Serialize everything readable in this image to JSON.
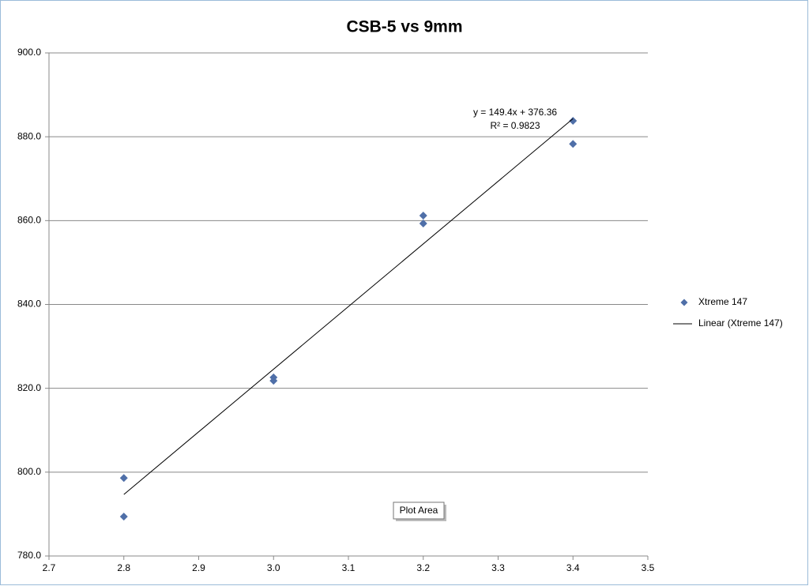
{
  "chart_data": {
    "type": "scatter",
    "title": "CSB-5 vs 9mm",
    "series": [
      {
        "name": "Xtreme 147",
        "color": "#4f6fa8",
        "x": [
          2.8,
          2.8,
          3.0,
          3.0,
          3.2,
          3.2,
          3.4,
          3.4
        ],
        "values": [
          789.4,
          798.6,
          822.6,
          821.8,
          861.2,
          859.3,
          883.8,
          878.3
        ]
      }
    ],
    "trendline": {
      "name": "Linear (Xtreme 147)",
      "color": "#000000",
      "slope": 149.4,
      "intercept": 376.36,
      "equation": "y = 149.4x + 376.36",
      "r2_label": "R² = 0.9823"
    },
    "xlim": [
      2.7,
      3.5
    ],
    "xticks": [
      2.7,
      2.8,
      2.9,
      {
        "value": 3.0,
        "label": "3.0"
      },
      3.1,
      3.2,
      3.3,
      3.4,
      3.5
    ],
    "ylim": [
      780,
      900
    ],
    "yticks": [
      {
        "value": 780,
        "label": "780.0"
      },
      {
        "value": 800,
        "label": "800.0"
      },
      {
        "value": 820,
        "label": "820.0"
      },
      {
        "value": 840,
        "label": "840.0"
      },
      {
        "value": 860,
        "label": "860.0"
      },
      {
        "value": 880,
        "label": "880.0"
      },
      {
        "value": 900,
        "label": "900.0"
      }
    ],
    "grid": true,
    "legend": "right",
    "tooltip": "Plot Area"
  }
}
